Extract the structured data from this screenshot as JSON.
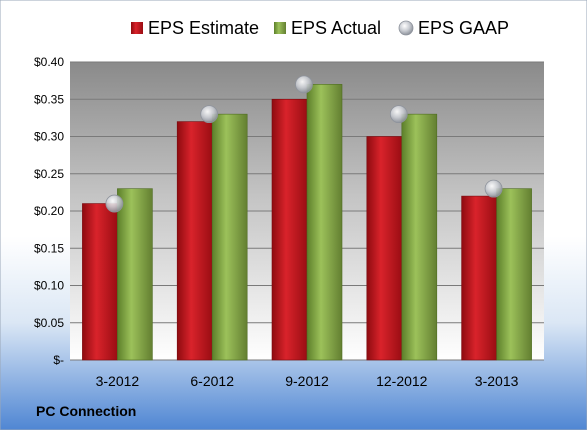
{
  "chart_data": {
    "type": "bar",
    "categories": [
      "3-2012",
      "6-2012",
      "9-2012",
      "12-2012",
      "3-2013"
    ],
    "series": [
      {
        "name": "EPS Estimate",
        "type": "bar",
        "color": "#c0141c",
        "values": [
          0.21,
          0.32,
          0.35,
          0.3,
          0.22
        ]
      },
      {
        "name": "EPS Actual",
        "type": "bar",
        "color": "#8ab04a",
        "values": [
          0.23,
          0.33,
          0.37,
          0.33,
          0.23
        ]
      },
      {
        "name": "EPS GAAP",
        "type": "marker",
        "color": "#b8bcc4",
        "values": [
          0.21,
          0.33,
          0.37,
          0.33,
          0.23
        ]
      }
    ],
    "ylim": [
      0,
      0.4
    ],
    "y_ticks": [
      {
        "value": 0.4,
        "label": "$0.40"
      },
      {
        "value": 0.35,
        "label": "$0.35"
      },
      {
        "value": 0.3,
        "label": "$0.30"
      },
      {
        "value": 0.25,
        "label": "$0.25"
      },
      {
        "value": 0.2,
        "label": "$0.20"
      },
      {
        "value": 0.15,
        "label": "$0.15"
      },
      {
        "value": 0.1,
        "label": "$0.10"
      },
      {
        "value": 0.05,
        "label": "$0.05"
      },
      {
        "value": 0.0,
        "label": "$-"
      }
    ],
    "grid": true,
    "legend_position": "top",
    "footer": "PC Connection"
  }
}
